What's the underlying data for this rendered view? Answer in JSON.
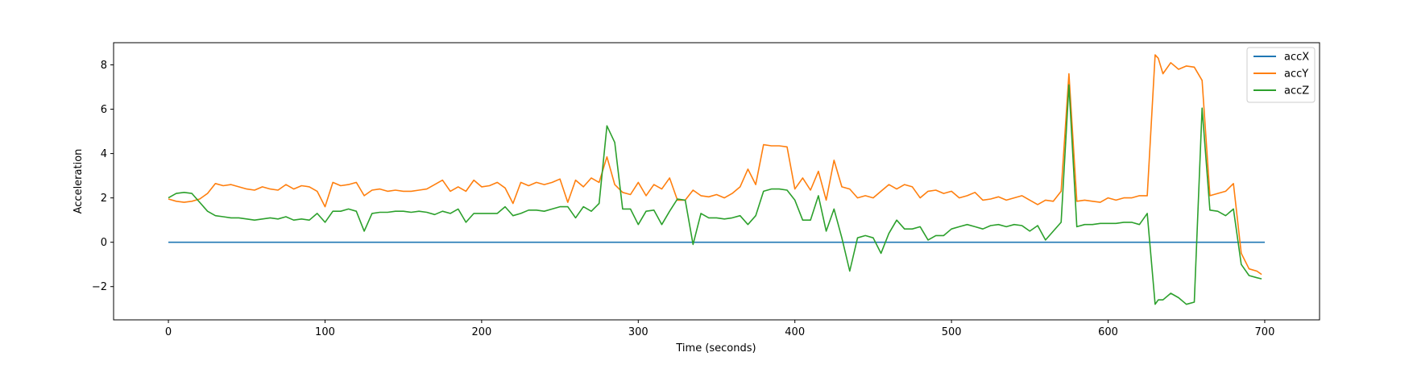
{
  "chart_data": {
    "type": "line",
    "title": "",
    "xlabel": "Time (seconds)",
    "ylabel": "Acceleration",
    "xlim": [
      -35,
      735
    ],
    "ylim": [
      -3.5,
      9.0
    ],
    "xticks": [
      0,
      100,
      200,
      300,
      400,
      500,
      600,
      700
    ],
    "yticks": [
      -2,
      0,
      2,
      4,
      6,
      8
    ],
    "grid": false,
    "legend_position": "top-right",
    "colors": {
      "accX": "#1f77b4",
      "accY": "#ff7f0e",
      "accZ": "#2ca02c"
    },
    "series": [
      {
        "name": "accX",
        "x": [
          0,
          100,
          200,
          300,
          400,
          500,
          600,
          700
        ],
        "values": [
          0,
          0,
          0,
          0,
          0,
          0,
          0,
          0
        ]
      },
      {
        "name": "accY",
        "x": [
          0,
          5,
          10,
          15,
          20,
          25,
          30,
          35,
          40,
          45,
          50,
          55,
          60,
          65,
          70,
          75,
          80,
          85,
          90,
          95,
          100,
          105,
          110,
          115,
          120,
          125,
          130,
          135,
          140,
          145,
          150,
          155,
          160,
          165,
          170,
          175,
          180,
          185,
          190,
          195,
          200,
          205,
          210,
          215,
          220,
          225,
          230,
          235,
          240,
          245,
          250,
          255,
          260,
          265,
          270,
          275,
          280,
          285,
          290,
          295,
          300,
          305,
          310,
          315,
          320,
          325,
          330,
          335,
          340,
          345,
          350,
          355,
          360,
          365,
          370,
          375,
          380,
          385,
          390,
          395,
          400,
          405,
          410,
          415,
          420,
          425,
          430,
          435,
          440,
          445,
          450,
          455,
          460,
          465,
          470,
          475,
          480,
          485,
          490,
          495,
          500,
          505,
          510,
          515,
          520,
          525,
          530,
          535,
          540,
          545,
          550,
          555,
          560,
          565,
          570,
          575,
          580,
          585,
          590,
          595,
          600,
          605,
          610,
          615,
          620,
          625,
          630,
          632,
          635,
          640,
          645,
          650,
          655,
          660,
          665,
          670,
          675,
          680,
          685,
          690,
          695,
          698
        ],
        "values": [
          1.95,
          1.85,
          1.8,
          1.85,
          1.95,
          2.2,
          2.65,
          2.55,
          2.6,
          2.5,
          2.4,
          2.35,
          2.5,
          2.4,
          2.35,
          2.6,
          2.4,
          2.55,
          2.5,
          2.3,
          1.6,
          2.7,
          2.55,
          2.6,
          2.7,
          2.1,
          2.35,
          2.4,
          2.3,
          2.35,
          2.3,
          2.3,
          2.35,
          2.4,
          2.6,
          2.8,
          2.3,
          2.5,
          2.3,
          2.8,
          2.5,
          2.55,
          2.7,
          2.45,
          1.75,
          2.7,
          2.55,
          2.7,
          2.6,
          2.7,
          2.85,
          1.8,
          2.8,
          2.5,
          2.9,
          2.7,
          3.85,
          2.6,
          2.25,
          2.15,
          2.7,
          2.1,
          2.6,
          2.4,
          2.9,
          1.9,
          1.9,
          2.35,
          2.1,
          2.05,
          2.15,
          2.0,
          2.2,
          2.5,
          3.3,
          2.6,
          4.4,
          4.35,
          4.35,
          4.3,
          2.4,
          2.9,
          2.35,
          3.2,
          1.9,
          3.7,
          2.5,
          2.4,
          2.0,
          2.1,
          2.0,
          2.3,
          2.6,
          2.4,
          2.6,
          2.5,
          2.0,
          2.3,
          2.35,
          2.2,
          2.3,
          2.0,
          2.1,
          2.25,
          1.9,
          1.95,
          2.05,
          1.9,
          2.0,
          2.1,
          1.9,
          1.7,
          1.9,
          1.85,
          2.3,
          7.6,
          1.85,
          1.9,
          1.85,
          1.8,
          2.0,
          1.9,
          2.0,
          2.0,
          2.1,
          2.1,
          8.45,
          8.3,
          7.6,
          8.1,
          7.8,
          7.95,
          7.9,
          7.3,
          2.1,
          2.2,
          2.3,
          2.65,
          -0.5,
          -1.2,
          -1.3,
          -1.45
        ]
      },
      {
        "name": "accZ",
        "x": [
          0,
          5,
          10,
          15,
          20,
          25,
          30,
          35,
          40,
          45,
          50,
          55,
          60,
          65,
          70,
          75,
          80,
          85,
          90,
          95,
          100,
          105,
          110,
          115,
          120,
          125,
          130,
          135,
          140,
          145,
          150,
          155,
          160,
          165,
          170,
          175,
          180,
          185,
          190,
          195,
          200,
          205,
          210,
          215,
          220,
          225,
          230,
          235,
          240,
          245,
          250,
          255,
          260,
          265,
          270,
          275,
          280,
          285,
          290,
          295,
          300,
          305,
          310,
          315,
          320,
          325,
          330,
          335,
          340,
          345,
          350,
          355,
          360,
          365,
          370,
          375,
          380,
          385,
          390,
          395,
          400,
          405,
          410,
          415,
          420,
          425,
          430,
          435,
          440,
          445,
          450,
          455,
          460,
          465,
          470,
          475,
          480,
          485,
          490,
          495,
          500,
          505,
          510,
          515,
          520,
          525,
          530,
          535,
          540,
          545,
          550,
          555,
          560,
          565,
          570,
          575,
          580,
          585,
          590,
          595,
          600,
          605,
          610,
          615,
          620,
          625,
          630,
          632,
          635,
          640,
          645,
          650,
          655,
          660,
          665,
          670,
          675,
          680,
          685,
          690,
          695,
          698
        ],
        "values": [
          2.0,
          2.2,
          2.25,
          2.2,
          1.8,
          1.4,
          1.2,
          1.15,
          1.1,
          1.1,
          1.05,
          1.0,
          1.05,
          1.1,
          1.05,
          1.15,
          1.0,
          1.05,
          1.0,
          1.3,
          0.9,
          1.4,
          1.4,
          1.5,
          1.4,
          0.5,
          1.3,
          1.35,
          1.35,
          1.4,
          1.4,
          1.35,
          1.4,
          1.35,
          1.25,
          1.4,
          1.3,
          1.5,
          0.9,
          1.3,
          1.3,
          1.3,
          1.3,
          1.6,
          1.2,
          1.3,
          1.45,
          1.45,
          1.4,
          1.5,
          1.6,
          1.6,
          1.1,
          1.6,
          1.4,
          1.75,
          5.25,
          4.5,
          1.5,
          1.5,
          0.8,
          1.4,
          1.45,
          0.8,
          1.4,
          1.95,
          1.9,
          -0.1,
          1.3,
          1.1,
          1.1,
          1.05,
          1.1,
          1.2,
          0.8,
          1.2,
          2.3,
          2.4,
          2.4,
          2.35,
          1.9,
          1.0,
          1.0,
          2.1,
          0.5,
          1.5,
          0.2,
          -1.3,
          0.2,
          0.3,
          0.2,
          -0.5,
          0.4,
          1.0,
          0.6,
          0.6,
          0.7,
          0.1,
          0.3,
          0.3,
          0.6,
          0.7,
          0.8,
          0.7,
          0.6,
          0.75,
          0.8,
          0.7,
          0.8,
          0.75,
          0.5,
          0.75,
          0.1,
          0.5,
          0.9,
          7.1,
          0.7,
          0.8,
          0.8,
          0.85,
          0.85,
          0.85,
          0.9,
          0.9,
          0.8,
          1.3,
          -2.8,
          -2.6,
          -2.6,
          -2.3,
          -2.5,
          -2.8,
          -2.7,
          6.05,
          1.45,
          1.4,
          1.2,
          1.5,
          -1.0,
          -1.5,
          -1.6,
          -1.65
        ]
      }
    ]
  }
}
